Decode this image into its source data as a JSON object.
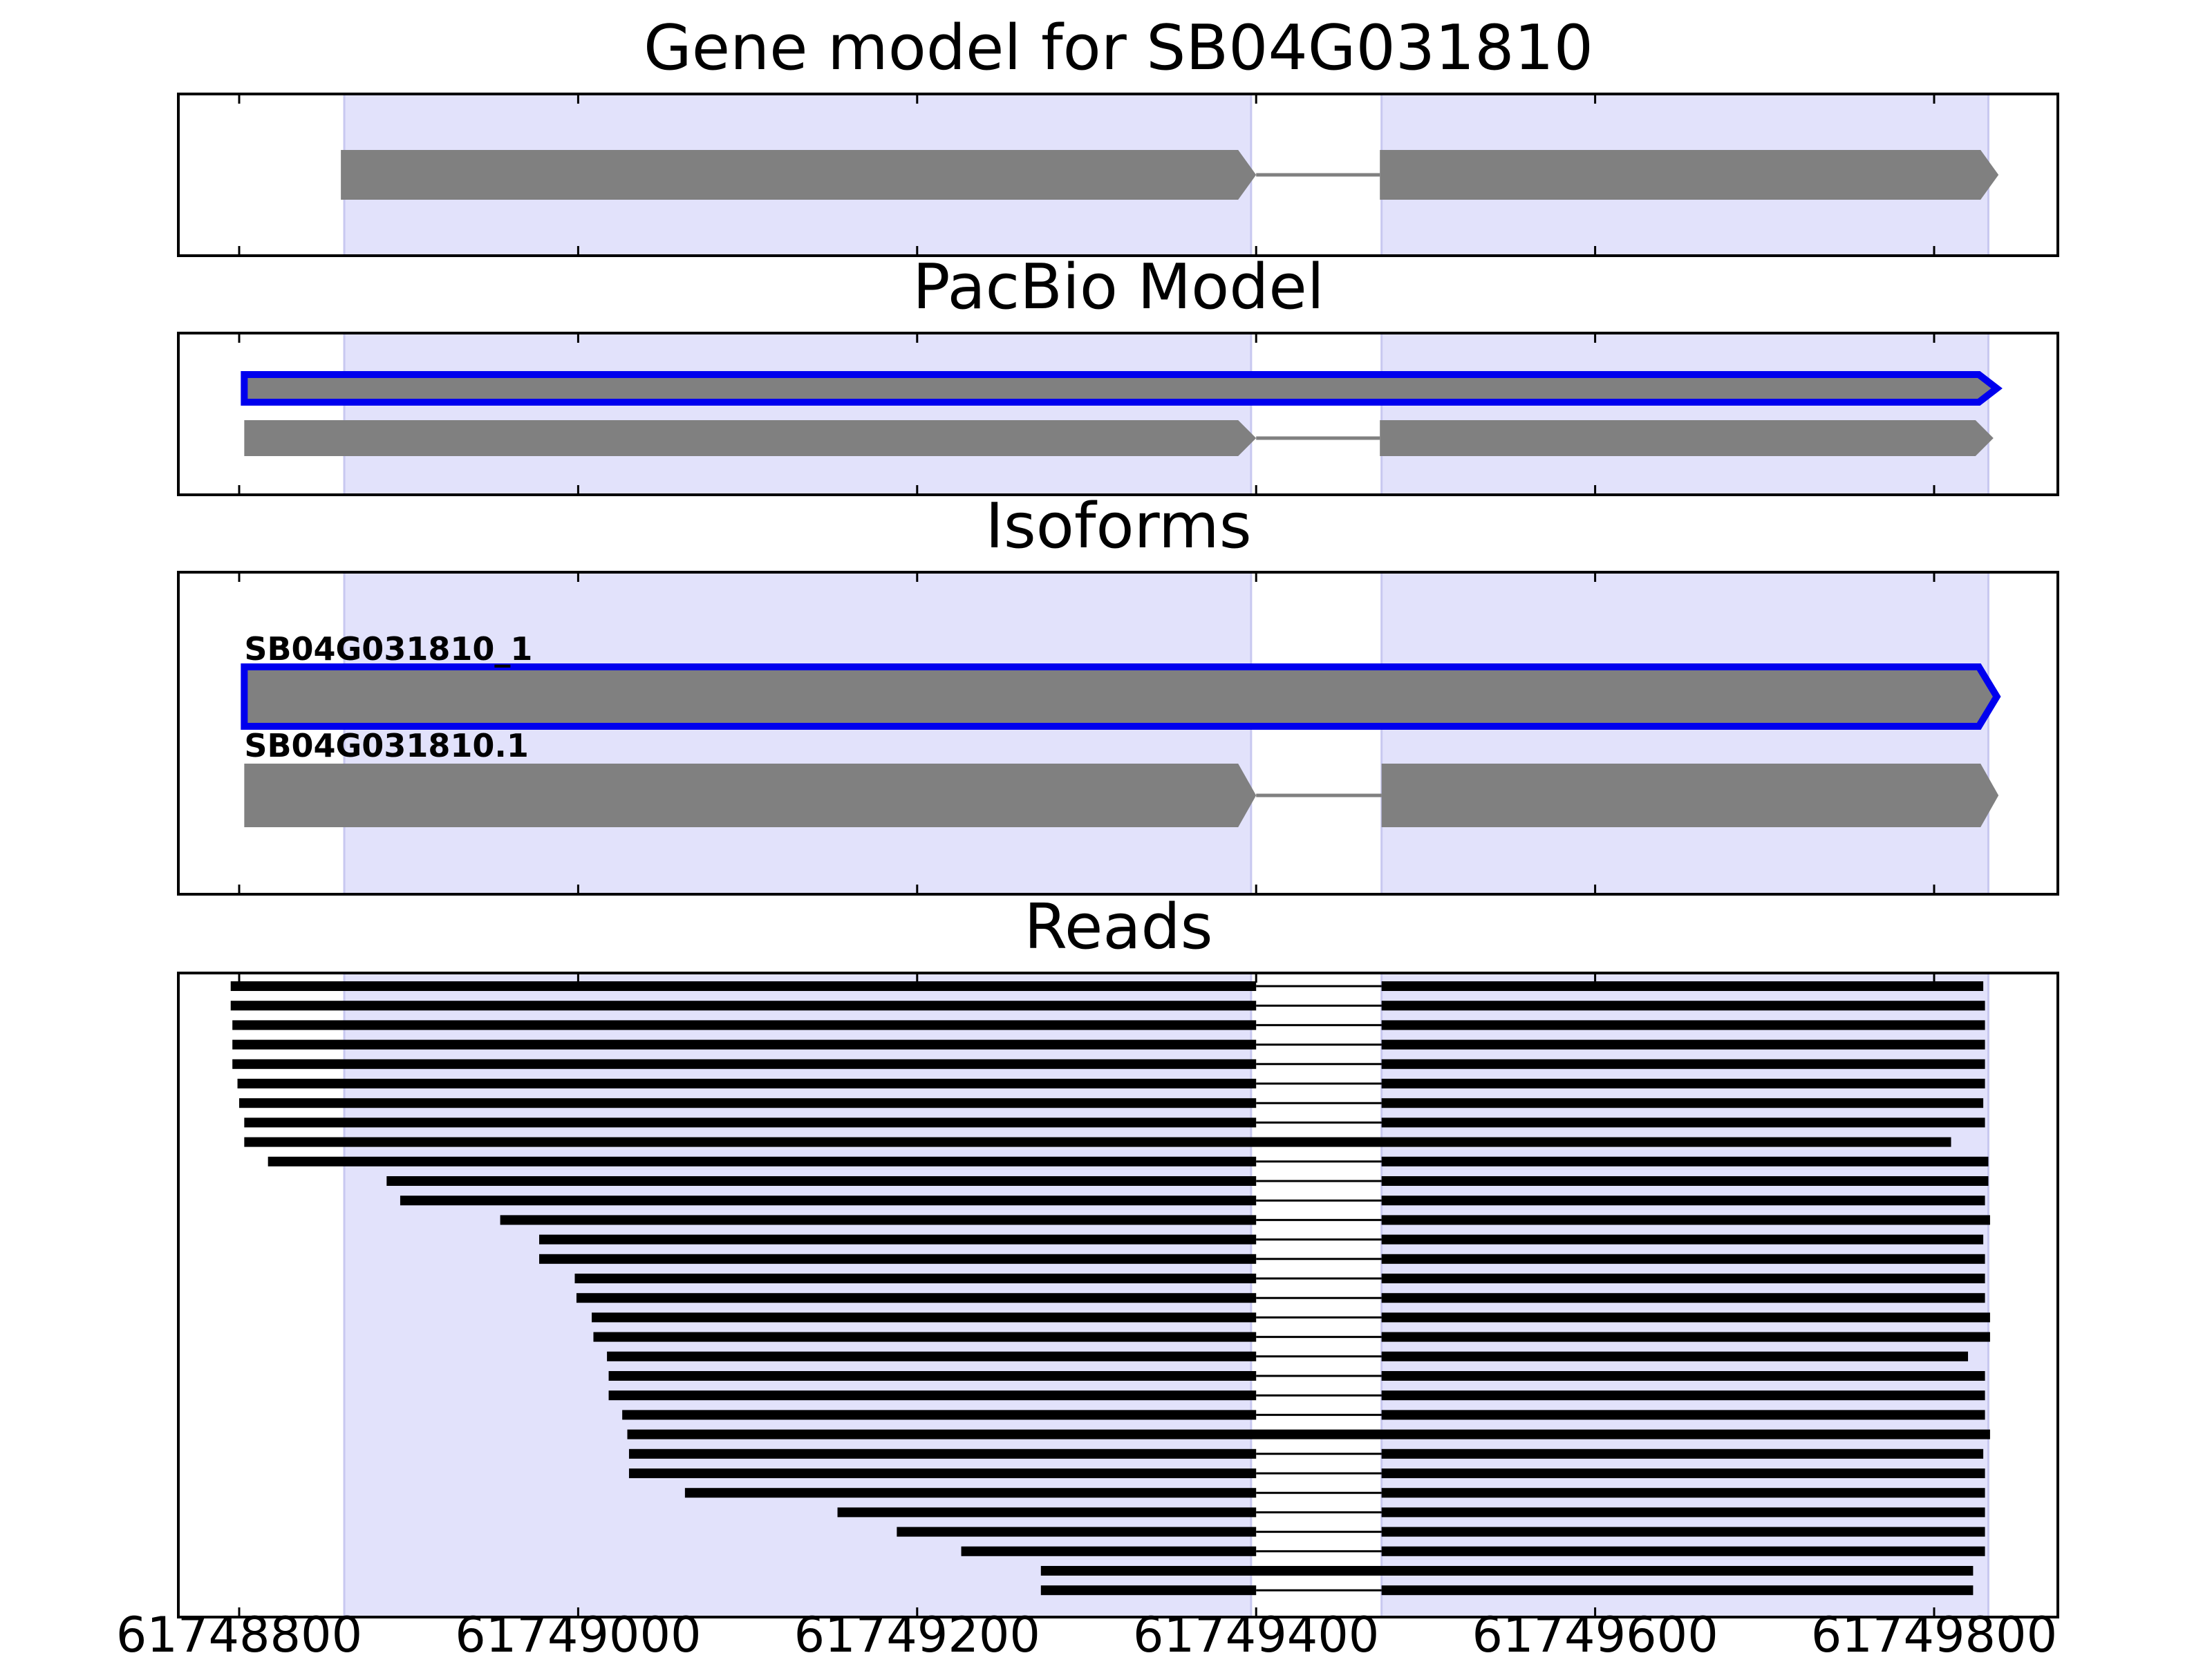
{
  "chart_data": {
    "type": "gene_model_tracks",
    "x_ticks": [
      61748800,
      61749000,
      61749200,
      61749400,
      61749600,
      61749800
    ],
    "x_tick_labels": [
      "61748800",
      "61749000",
      "61749200",
      "61749400",
      "61749600",
      "61749800"
    ],
    "xlim": [
      61748765,
      61749875
    ],
    "colors": {
      "exon_fill": "#808080",
      "highlight_outline": "#0000ee",
      "shade": "#e2e2fb",
      "read": "#000000",
      "intron": "#808080"
    },
    "shaded_regions": [
      [
        61748862,
        61749397
      ],
      [
        61749474,
        61749832
      ]
    ],
    "panels": [
      {
        "title": "Gene model for SB04G031810",
        "models": [
          {
            "label": "",
            "highlight": false,
            "exons": [
              [
                61748860,
                61749400
              ],
              [
                61749473,
                61749838
              ]
            ]
          }
        ]
      },
      {
        "title": "PacBio Model",
        "models": [
          {
            "label": "",
            "highlight": true,
            "exons": [
              [
                61748803,
                61749837
              ]
            ]
          },
          {
            "label": "",
            "highlight": false,
            "exons": [
              [
                61748803,
                61749400
              ],
              [
                61749473,
                61749835
              ]
            ]
          }
        ]
      },
      {
        "title": "Isoforms",
        "models": [
          {
            "label": "SB04G031810_1",
            "highlight": true,
            "exons": [
              [
                61748803,
                61749837
              ]
            ]
          },
          {
            "label": "SB04G031810.1",
            "highlight": false,
            "exons": [
              [
                61748803,
                61749400
              ],
              [
                61749474,
                61749838
              ]
            ]
          }
        ]
      },
      {
        "title": "Reads",
        "reads": [
          {
            "start": 61748795,
            "split": true,
            "end": 61749829
          },
          {
            "start": 61748795,
            "split": true,
            "end": 61749830
          },
          {
            "start": 61748796,
            "split": true,
            "end": 61749830
          },
          {
            "start": 61748796,
            "split": true,
            "end": 61749830
          },
          {
            "start": 61748796,
            "split": true,
            "end": 61749830
          },
          {
            "start": 61748799,
            "split": true,
            "end": 61749830
          },
          {
            "start": 61748800,
            "split": true,
            "end": 61749829
          },
          {
            "start": 61748803,
            "split": true,
            "end": 61749830
          },
          {
            "start": 61748803,
            "split": false,
            "end": 61749810
          },
          {
            "start": 61748817,
            "split": true,
            "end": 61749832
          },
          {
            "start": 61748887,
            "split": true,
            "end": 61749832
          },
          {
            "start": 61748895,
            "split": true,
            "end": 61749830
          },
          {
            "start": 61748954,
            "split": true,
            "end": 61749833
          },
          {
            "start": 61748977,
            "split": true,
            "end": 61749829
          },
          {
            "start": 61748977,
            "split": true,
            "end": 61749830
          },
          {
            "start": 61748998,
            "split": true,
            "end": 61749830
          },
          {
            "start": 61748999,
            "split": true,
            "end": 61749830
          },
          {
            "start": 61749008,
            "split": true,
            "end": 61749833
          },
          {
            "start": 61749009,
            "split": true,
            "end": 61749833
          },
          {
            "start": 61749017,
            "split": true,
            "end": 61749820
          },
          {
            "start": 61749018,
            "split": true,
            "end": 61749830
          },
          {
            "start": 61749018,
            "split": true,
            "end": 61749830
          },
          {
            "start": 61749026,
            "split": true,
            "end": 61749830
          },
          {
            "start": 61749029,
            "split": false,
            "end": 61749833
          },
          {
            "start": 61749030,
            "split": true,
            "end": 61749829
          },
          {
            "start": 61749030,
            "split": true,
            "end": 61749830
          },
          {
            "start": 61749063,
            "split": true,
            "end": 61749830
          },
          {
            "start": 61749153,
            "split": true,
            "end": 61749830
          },
          {
            "start": 61749188,
            "split": true,
            "end": 61749830
          },
          {
            "start": 61749226,
            "split": true,
            "end": 61749830
          },
          {
            "start": 61749273,
            "split": false,
            "end": 61749823
          },
          {
            "start": 61749273,
            "split": true,
            "end": 61749823
          }
        ]
      }
    ]
  }
}
